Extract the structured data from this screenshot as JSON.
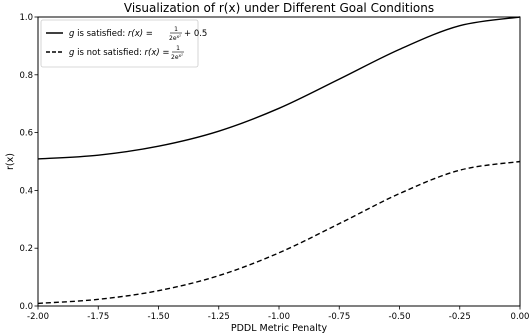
{
  "chart_data": {
    "type": "line",
    "title": "Visualization of r(x) under Different Goal Conditions",
    "xlabel": "PDDL Metric Penalty",
    "ylabel": "r(x)",
    "xlim": [
      -2.0,
      0.0
    ],
    "ylim": [
      0.0,
      1.0
    ],
    "xticks": [
      "-2.00",
      "-1.75",
      "-1.50",
      "-1.25",
      "-1.00",
      "-0.75",
      "-0.50",
      "-0.25",
      "0.00"
    ],
    "yticks": [
      "0.0",
      "0.2",
      "0.4",
      "0.6",
      "0.8",
      "1.0"
    ],
    "grid": false,
    "legend_position": "top-left",
    "x": [
      -2.0,
      -1.75,
      -1.5,
      -1.25,
      -1.0,
      -0.75,
      -0.5,
      -0.25,
      0.0
    ],
    "series": [
      {
        "name_prefix": "g",
        "name_text": "is satisfied:",
        "formula_lhs": "r(x) =",
        "formula_num": "1",
        "formula_den": "2e",
        "formula_den_sup": "x²",
        "formula_tail": "+ 0.5",
        "style": "solid",
        "color": "#000000",
        "values": [
          0.509,
          0.522,
          0.553,
          0.605,
          0.684,
          0.785,
          0.888,
          0.97,
          1.0
        ]
      },
      {
        "name_prefix": "g",
        "name_text": "is not satisfied:",
        "formula_lhs": "r(x) =",
        "formula_num": "1",
        "formula_den": "2e",
        "formula_den_sup": "x²",
        "formula_tail": "",
        "style": "dashed",
        "color": "#000000",
        "values": [
          0.009,
          0.023,
          0.053,
          0.105,
          0.184,
          0.285,
          0.389,
          0.47,
          0.5
        ]
      }
    ]
  }
}
